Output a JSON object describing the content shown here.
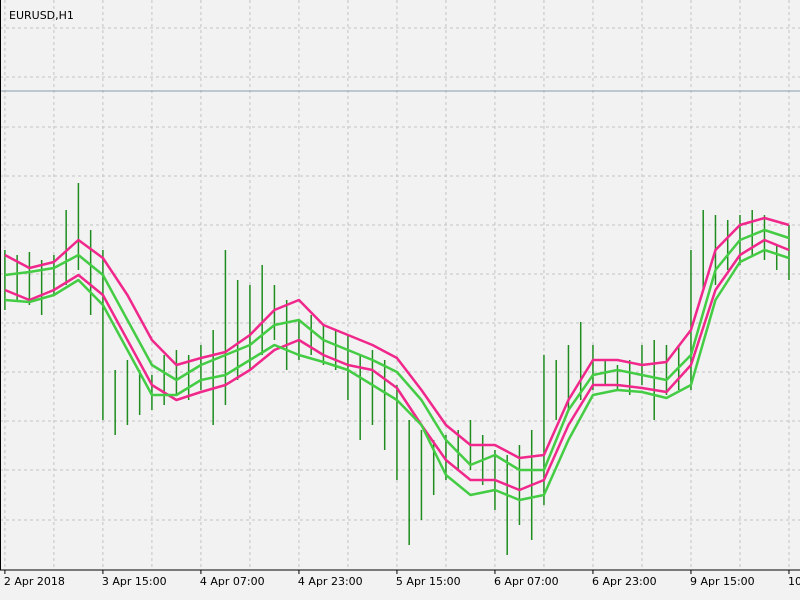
{
  "chart_data": {
    "type": "ohlc",
    "title": "EURUSD,H1",
    "xlim": [
      -0.8,
      129.8
    ],
    "ylim": [
      0,
      570
    ],
    "xticks": [
      {
        "value": 0,
        "label": "2 Apr 2018"
      },
      {
        "value": 16,
        "label": "3 Apr 15:00"
      },
      {
        "value": 32,
        "label": "4 Apr 07:00"
      },
      {
        "value": 48,
        "label": "4 Apr 23:00"
      },
      {
        "value": 64,
        "label": "5 Apr 15:00"
      },
      {
        "value": 80,
        "label": "6 Apr 07:00"
      },
      {
        "value": 96,
        "label": "6 Apr 23:00"
      },
      {
        "value": 112,
        "label": "9 Apr 15:00"
      },
      {
        "value": 128,
        "label": "10"
      }
    ],
    "grid": true,
    "xgrid": [
      0,
      8,
      16,
      24,
      32,
      40,
      48,
      56,
      64,
      72,
      80,
      88,
      96,
      104,
      112,
      120,
      128
    ],
    "ygrid": [
      542,
      493,
      443,
      394,
      345,
      296,
      247,
      198,
      149,
      100,
      50
    ],
    "hline": 479,
    "hline_color": "#8a9aaa",
    "grid_color": "#c4c4c4",
    "background": "#f2f2f2",
    "bars": {
      "color": "#1e8c1e",
      "x": [
        0,
        2,
        4,
        6,
        8,
        10,
        12,
        14,
        16,
        18,
        20,
        22,
        24,
        26,
        28,
        30,
        32,
        34,
        36,
        38,
        40,
        42,
        44,
        46,
        48,
        50,
        52,
        54,
        56,
        58,
        60,
        62,
        64,
        66,
        68,
        70,
        72,
        74,
        76,
        78,
        80,
        82,
        84,
        86,
        88,
        90,
        92,
        94,
        96,
        98,
        100,
        102,
        104,
        106,
        108,
        110,
        112,
        114,
        116,
        118,
        120,
        122,
        124,
        126,
        128
      ],
      "high": [
        320,
        315,
        318,
        310,
        315,
        360,
        387,
        340,
        320,
        200,
        210,
        200,
        195,
        215,
        220,
        215,
        225,
        240,
        320,
        290,
        285,
        305,
        285,
        270,
        250,
        255,
        245,
        240,
        235,
        215,
        220,
        210,
        185,
        150,
        140,
        130,
        135,
        140,
        150,
        135,
        120,
        115,
        125,
        140,
        215,
        210,
        225,
        248,
        225,
        210,
        205,
        210,
        225,
        230,
        225,
        225,
        320,
        360,
        355,
        350,
        355,
        360,
        355,
        325,
        345
      ],
      "low": [
        260,
        270,
        265,
        255,
        275,
        285,
        300,
        255,
        150,
        135,
        145,
        155,
        160,
        165,
        175,
        170,
        180,
        145,
        165,
        190,
        200,
        215,
        230,
        200,
        210,
        215,
        205,
        200,
        170,
        130,
        145,
        120,
        90,
        25,
        50,
        75,
        90,
        100,
        100,
        85,
        60,
        15,
        45,
        30,
        65,
        150,
        160,
        170,
        180,
        185,
        180,
        175,
        185,
        150,
        175,
        180,
        180,
        280,
        285,
        300,
        305,
        315,
        310,
        300,
        290
      ]
    },
    "series": [
      {
        "color": "#f0288c",
        "x": [
          0,
          4,
          8,
          12,
          16,
          20,
          24,
          28,
          32,
          36,
          40,
          44,
          48,
          52,
          56,
          60,
          64,
          68,
          72,
          76,
          80,
          84,
          88,
          92,
          96,
          100,
          104,
          108,
          112,
          116,
          120,
          124,
          128
        ],
        "values": [
          315,
          302,
          308,
          330,
          312,
          275,
          230,
          205,
          212,
          218,
          235,
          260,
          270,
          245,
          235,
          225,
          212,
          180,
          145,
          125,
          125,
          112,
          115,
          170,
          210,
          210,
          205,
          208,
          240,
          320,
          345,
          352,
          345
        ]
      },
      {
        "color": "#f0288c",
        "x": [
          0,
          4,
          8,
          12,
          16,
          20,
          24,
          28,
          32,
          36,
          40,
          44,
          48,
          52,
          56,
          60,
          64,
          68,
          72,
          76,
          80,
          84,
          88,
          92,
          96,
          100,
          104,
          108,
          112,
          116,
          120,
          124,
          128
        ],
        "values": [
          280,
          270,
          280,
          295,
          275,
          230,
          185,
          170,
          178,
          185,
          200,
          220,
          230,
          215,
          205,
          200,
          182,
          145,
          110,
          90,
          90,
          80,
          90,
          145,
          185,
          185,
          182,
          178,
          205,
          280,
          315,
          330,
          320
        ]
      },
      {
        "color": "#44cc44",
        "x": [
          0,
          4,
          8,
          12,
          16,
          20,
          24,
          28,
          32,
          36,
          40,
          44,
          48,
          52,
          56,
          60,
          64,
          68,
          72,
          76,
          80,
          84,
          88,
          92,
          96,
          100,
          104,
          108,
          112,
          116,
          120,
          124,
          128
        ],
        "values": [
          295,
          298,
          302,
          315,
          295,
          250,
          205,
          190,
          205,
          215,
          225,
          245,
          250,
          230,
          220,
          210,
          198,
          170,
          130,
          105,
          115,
          100,
          100,
          160,
          195,
          200,
          195,
          190,
          215,
          300,
          330,
          340,
          332
        ]
      },
      {
        "color": "#44cc44",
        "x": [
          0,
          4,
          8,
          12,
          16,
          20,
          24,
          28,
          32,
          36,
          40,
          44,
          48,
          52,
          56,
          60,
          64,
          68,
          72,
          76,
          80,
          84,
          88,
          92,
          96,
          100,
          104,
          108,
          112,
          116,
          120,
          124,
          128
        ],
        "values": [
          270,
          268,
          275,
          290,
          265,
          220,
          175,
          175,
          190,
          195,
          210,
          225,
          215,
          208,
          200,
          185,
          170,
          145,
          95,
          75,
          80,
          70,
          75,
          130,
          175,
          180,
          178,
          172,
          185,
          270,
          308,
          320,
          312
        ]
      }
    ]
  }
}
